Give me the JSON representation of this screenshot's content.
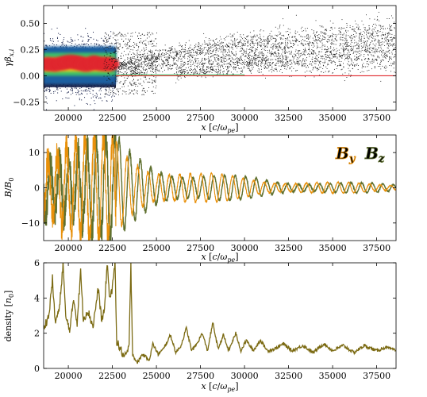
{
  "chart_data": [
    {
      "type": "scatter",
      "xlabel": "x [c/ω_pe]",
      "ylabel": "γβ_{x,i}",
      "xlim": [
        18600,
        38600
      ],
      "ylim": [
        -0.33,
        0.67
      ],
      "xticks": [
        20000,
        22500,
        25000,
        27500,
        30000,
        32500,
        35000,
        37500
      ],
      "yticks": [
        -0.25,
        0.0,
        0.25,
        0.5
      ],
      "xtick_labels": [
        "20000",
        "22500",
        "25000",
        "27500",
        "30000",
        "32500",
        "35000",
        "37500"
      ],
      "ytick_labels": [
        "−0.25",
        "0.00",
        "0.25",
        "0.50"
      ],
      "colormap": [
        "#0b1540",
        "#1a5fa0",
        "#3fbf6a",
        "#e8d21f",
        "#e0282d"
      ],
      "features": {
        "dense_core_x": [
          18600,
          22700
        ],
        "dense_core_y": [
          -0.2,
          0.32
        ],
        "hot_center_y": 0.12,
        "reflected_beams": [
          {
            "x": [
              22800,
              38600
            ],
            "y": [
              0.05,
              0.42
            ]
          },
          {
            "x": [
              23500,
              38600
            ],
            "y": [
              0.02,
              0.26
            ]
          },
          {
            "x": [
              26000,
              38600
            ],
            "y": [
              0.0,
              0.18
            ]
          }
        ]
      }
    },
    {
      "type": "line",
      "xlabel": "x [c/ω_pe]",
      "ylabel": "B/B_0",
      "xlim": [
        18600,
        38600
      ],
      "ylim": [
        -15,
        15
      ],
      "xticks": [
        20000,
        22500,
        25000,
        27500,
        30000,
        32500,
        35000,
        37500
      ],
      "yticks": [
        -10,
        0,
        10
      ],
      "xtick_labels": [
        "20000",
        "22500",
        "25000",
        "27500",
        "30000",
        "32500",
        "35000",
        "37500"
      ],
      "ytick_labels": [
        "−10",
        "0",
        "10"
      ],
      "legend_position": "top-right",
      "series": [
        {
          "name": "B_y",
          "color": "#5e6f2e",
          "envelope": {
            "x": [
              18600,
              22700,
              23400,
              25000,
              27500,
              30000,
              32500,
              35000,
              38600
            ],
            "amplitude": [
              15,
              15,
              11,
              7.5,
              4.5,
              3.2,
              2.2,
              1.6,
              1.2
            ]
          }
        },
        {
          "name": "B_z",
          "color": "#e8900a",
          "envelope": {
            "x": [
              18600,
              22700,
              23400,
              25000,
              27500,
              30000,
              32500,
              35000,
              38600
            ],
            "amplitude": [
              15,
              15,
              11,
              7.5,
              4.5,
              3.2,
              2.2,
              1.6,
              1.2
            ]
          }
        }
      ],
      "legend": {
        "by_label": "B",
        "by_sub": "y",
        "bz_label": "B",
        "bz_sub": "z",
        "by_color": "#5e6f2e",
        "bz_color": "#e8900a"
      }
    },
    {
      "type": "line",
      "xlabel": "x [c/ω_pe]",
      "ylabel": "density [n_0]",
      "xlim": [
        18600,
        38600
      ],
      "ylim": [
        0,
        6
      ],
      "xticks": [
        20000,
        22500,
        25000,
        27500,
        30000,
        32500,
        35000,
        37500
      ],
      "yticks": [
        0,
        2,
        4,
        6
      ],
      "xtick_labels": [
        "20000",
        "22500",
        "25000",
        "27500",
        "30000",
        "32500",
        "35000",
        "37500"
      ],
      "ytick_labels": [
        "0",
        "2",
        "4",
        "6"
      ],
      "series": [
        {
          "name": "",
          "color": "#7b6a12",
          "points": [
            [
              18600,
              2.3
            ],
            [
              18900,
              3.0
            ],
            [
              19100,
              5.1
            ],
            [
              19250,
              2.6
            ],
            [
              19500,
              3.4
            ],
            [
              19700,
              6.0
            ],
            [
              19850,
              2.9
            ],
            [
              20100,
              2.2
            ],
            [
              20300,
              4.0
            ],
            [
              20500,
              2.6
            ],
            [
              20700,
              5.5
            ],
            [
              20850,
              2.8
            ],
            [
              21100,
              3.3
            ],
            [
              21400,
              2.4
            ],
            [
              21700,
              4.5
            ],
            [
              21900,
              2.7
            ],
            [
              22050,
              3.3
            ],
            [
              22200,
              6.0
            ],
            [
              22350,
              4.0
            ],
            [
              22500,
              4.5
            ],
            [
              22650,
              6.0
            ],
            [
              22750,
              1.5
            ],
            [
              23000,
              1.0
            ],
            [
              23200,
              0.6
            ],
            [
              23450,
              1.2
            ],
            [
              23550,
              6.0
            ],
            [
              23650,
              0.8
            ],
            [
              23900,
              0.3
            ],
            [
              24200,
              0.8
            ],
            [
              24600,
              0.5
            ],
            [
              24800,
              1.4
            ],
            [
              25100,
              0.8
            ],
            [
              25400,
              1.1
            ],
            [
              25800,
              1.9
            ],
            [
              26100,
              0.9
            ],
            [
              26400,
              1.3
            ],
            [
              26700,
              2.3
            ],
            [
              27000,
              1.0
            ],
            [
              27300,
              1.4
            ],
            [
              27600,
              2.0
            ],
            [
              27900,
              1.0
            ],
            [
              28200,
              2.6
            ],
            [
              28500,
              1.1
            ],
            [
              28800,
              1.9
            ],
            [
              29100,
              1.0
            ],
            [
              29500,
              2.0
            ],
            [
              29800,
              1.0
            ],
            [
              30100,
              1.6
            ],
            [
              30500,
              1.0
            ],
            [
              30900,
              1.6
            ],
            [
              31300,
              1.0
            ],
            [
              31700,
              1.1
            ],
            [
              32200,
              1.4
            ],
            [
              32700,
              1.0
            ],
            [
              33300,
              1.3
            ],
            [
              33900,
              0.9
            ],
            [
              34500,
              1.4
            ],
            [
              35000,
              1.0
            ],
            [
              35600,
              1.3
            ],
            [
              36200,
              0.9
            ],
            [
              36800,
              1.3
            ],
            [
              37500,
              1.0
            ],
            [
              38000,
              1.2
            ],
            [
              38600,
              1.0
            ]
          ]
        }
      ]
    }
  ]
}
